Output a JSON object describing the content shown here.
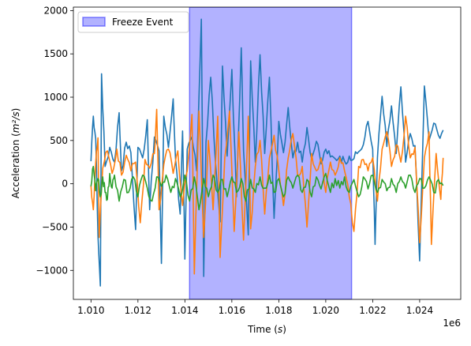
{
  "chart_data": {
    "type": "line",
    "title": "",
    "xlabel": "Time (s)",
    "ylabel": "Acceleration (m²/s)",
    "x_range": [
      1010000,
      1025000
    ],
    "xlim": [
      1009250,
      1025750
    ],
    "ylim": [
      -1335,
      2040
    ],
    "x_ticks": [
      1010000,
      1012000,
      1014000,
      1016000,
      1018000,
      1020000,
      1022000,
      1024000
    ],
    "x_tick_labels": [
      "1.010",
      "1.012",
      "1.014",
      "1.016",
      "1.018",
      "1.020",
      "1.022",
      "1.024"
    ],
    "x_offset_label": "1e6",
    "y_ticks": [
      -1000,
      -500,
      0,
      500,
      1000,
      1500,
      2000
    ],
    "y_tick_labels": [
      "−1000",
      "−500",
      "0",
      "500",
      "1000",
      "1500",
      "2000"
    ],
    "grid": false,
    "legend": {
      "position": "top-left",
      "entries": [
        {
          "label": "Freeze Event",
          "color": "#0000ff"
        }
      ]
    },
    "freeze_event": {
      "start": 1014200,
      "end": 1021100,
      "label": "Freeze Event",
      "color": "#0000ff",
      "alpha": 0.3
    },
    "series": [
      {
        "color": "#1f77b4",
        "points": [
          [
            1010000,
            260
          ],
          [
            1010100,
            780
          ],
          [
            1010200,
            520
          ],
          [
            1010300,
            -600
          ],
          [
            1010400,
            -1180
          ],
          [
            1010450,
            1270
          ],
          [
            1010600,
            200
          ],
          [
            1010800,
            420
          ],
          [
            1011000,
            250
          ],
          [
            1011200,
            820
          ],
          [
            1011300,
            150
          ],
          [
            1011500,
            480
          ],
          [
            1011700,
            360
          ],
          [
            1011900,
            -530
          ],
          [
            1012000,
            420
          ],
          [
            1012200,
            300
          ],
          [
            1012400,
            740
          ],
          [
            1012500,
            -300
          ],
          [
            1012700,
            540
          ],
          [
            1012900,
            380
          ],
          [
            1013000,
            -920
          ],
          [
            1013100,
            780
          ],
          [
            1013300,
            420
          ],
          [
            1013500,
            980
          ],
          [
            1013600,
            300
          ],
          [
            1013800,
            -350
          ],
          [
            1013900,
            610
          ],
          [
            1014000,
            -870
          ],
          [
            1014100,
            400
          ],
          [
            1014300,
            540
          ],
          [
            1014500,
            150
          ],
          [
            1014700,
            1900
          ],
          [
            1014800,
            -1070
          ],
          [
            1014900,
            480
          ],
          [
            1015100,
            1230
          ],
          [
            1015300,
            260
          ],
          [
            1015500,
            -440
          ],
          [
            1015600,
            1360
          ],
          [
            1015800,
            320
          ],
          [
            1016000,
            1320
          ],
          [
            1016200,
            -150
          ],
          [
            1016400,
            1570
          ],
          [
            1016500,
            380
          ],
          [
            1016700,
            -590
          ],
          [
            1016800,
            1420
          ],
          [
            1017000,
            250
          ],
          [
            1017200,
            1490
          ],
          [
            1017400,
            350
          ],
          [
            1017600,
            1230
          ],
          [
            1017800,
            -400
          ],
          [
            1018000,
            720
          ],
          [
            1018200,
            360
          ],
          [
            1018400,
            880
          ],
          [
            1018600,
            300
          ],
          [
            1018800,
            480
          ],
          [
            1019000,
            250
          ],
          [
            1019200,
            650
          ],
          [
            1019400,
            290
          ],
          [
            1019600,
            490
          ],
          [
            1019800,
            230
          ],
          [
            1020000,
            400
          ],
          [
            1020200,
            310
          ],
          [
            1020400,
            290
          ],
          [
            1020600,
            320
          ],
          [
            1020800,
            260
          ],
          [
            1021000,
            320
          ],
          [
            1021200,
            290
          ],
          [
            1021400,
            370
          ],
          [
            1021600,
            450
          ],
          [
            1021800,
            720
          ],
          [
            1022000,
            400
          ],
          [
            1022100,
            -700
          ],
          [
            1022200,
            300
          ],
          [
            1022400,
            1010
          ],
          [
            1022600,
            430
          ],
          [
            1022800,
            900
          ],
          [
            1023000,
            350
          ],
          [
            1023200,
            1120
          ],
          [
            1023400,
            250
          ],
          [
            1023600,
            580
          ],
          [
            1023800,
            440
          ],
          [
            1024000,
            -890
          ],
          [
            1024200,
            1130
          ],
          [
            1024400,
            500
          ],
          [
            1024600,
            700
          ],
          [
            1024800,
            560
          ],
          [
            1025000,
            620
          ]
        ]
      },
      {
        "color": "#ff7f0e",
        "points": [
          [
            1010000,
            -20
          ],
          [
            1010100,
            -300
          ],
          [
            1010200,
            240
          ],
          [
            1010300,
            530
          ],
          [
            1010350,
            -620
          ],
          [
            1010500,
            180
          ],
          [
            1010700,
            380
          ],
          [
            1010900,
            120
          ],
          [
            1011100,
            400
          ],
          [
            1011300,
            100
          ],
          [
            1011500,
            330
          ],
          [
            1011700,
            150
          ],
          [
            1011900,
            250
          ],
          [
            1012100,
            -450
          ],
          [
            1012300,
            280
          ],
          [
            1012500,
            180
          ],
          [
            1012700,
            350
          ],
          [
            1012800,
            860
          ],
          [
            1012900,
            -300
          ],
          [
            1013100,
            220
          ],
          [
            1013300,
            400
          ],
          [
            1013500,
            120
          ],
          [
            1013700,
            380
          ],
          [
            1013900,
            -250
          ],
          [
            1014100,
            150
          ],
          [
            1014300,
            800
          ],
          [
            1014400,
            -1040
          ],
          [
            1014600,
            840
          ],
          [
            1014800,
            -620
          ],
          [
            1015000,
            500
          ],
          [
            1015200,
            -300
          ],
          [
            1015400,
            780
          ],
          [
            1015500,
            -850
          ],
          [
            1015700,
            300
          ],
          [
            1015900,
            840
          ],
          [
            1016100,
            -550
          ],
          [
            1016300,
            600
          ],
          [
            1016500,
            -650
          ],
          [
            1016700,
            780
          ],
          [
            1016800,
            -520
          ],
          [
            1017000,
            200
          ],
          [
            1017200,
            500
          ],
          [
            1017400,
            -350
          ],
          [
            1017600,
            300
          ],
          [
            1017800,
            560
          ],
          [
            1018000,
            150
          ],
          [
            1018200,
            -250
          ],
          [
            1018400,
            300
          ],
          [
            1018600,
            580
          ],
          [
            1018800,
            100
          ],
          [
            1019000,
            200
          ],
          [
            1019200,
            -500
          ],
          [
            1019400,
            350
          ],
          [
            1019600,
            150
          ],
          [
            1019800,
            300
          ],
          [
            1020000,
            -100
          ],
          [
            1020200,
            250
          ],
          [
            1020400,
            100
          ],
          [
            1020600,
            300
          ],
          [
            1020800,
            150
          ],
          [
            1021000,
            -150
          ],
          [
            1021200,
            -550
          ],
          [
            1021400,
            200
          ],
          [
            1021600,
            280
          ],
          [
            1021800,
            150
          ],
          [
            1022000,
            300
          ],
          [
            1022200,
            -200
          ],
          [
            1022400,
            400
          ],
          [
            1022600,
            600
          ],
          [
            1022800,
            200
          ],
          [
            1023000,
            450
          ],
          [
            1023200,
            250
          ],
          [
            1023400,
            780
          ],
          [
            1023600,
            300
          ],
          [
            1023800,
            420
          ],
          [
            1024000,
            -680
          ],
          [
            1024200,
            300
          ],
          [
            1024400,
            600
          ],
          [
            1024500,
            -700
          ],
          [
            1024700,
            350
          ],
          [
            1024900,
            -180
          ],
          [
            1025000,
            300
          ]
        ]
      },
      {
        "color": "#2ca02c",
        "points": [
          [
            1010000,
            -30
          ],
          [
            1010100,
            200
          ],
          [
            1010200,
            -80
          ],
          [
            1010300,
            60
          ],
          [
            1010400,
            -150
          ],
          [
            1010500,
            80
          ],
          [
            1010600,
            -100
          ],
          [
            1010700,
            -180
          ],
          [
            1010800,
            120
          ],
          [
            1010900,
            -50
          ],
          [
            1011000,
            100
          ],
          [
            1011200,
            -200
          ],
          [
            1011400,
            50
          ],
          [
            1011600,
            -100
          ],
          [
            1011800,
            80
          ],
          [
            1012000,
            -150
          ],
          [
            1012200,
            100
          ],
          [
            1012400,
            -50
          ],
          [
            1012600,
            -200
          ],
          [
            1012800,
            80
          ],
          [
            1013000,
            -30
          ],
          [
            1013200,
            100
          ],
          [
            1013400,
            -100
          ],
          [
            1013600,
            60
          ],
          [
            1013800,
            -150
          ],
          [
            1014000,
            100
          ],
          [
            1014200,
            -200
          ],
          [
            1014400,
            80
          ],
          [
            1014600,
            -300
          ],
          [
            1014800,
            60
          ],
          [
            1015000,
            -150
          ],
          [
            1015200,
            100
          ],
          [
            1015400,
            -100
          ],
          [
            1015600,
            50
          ],
          [
            1015800,
            -150
          ],
          [
            1016000,
            80
          ],
          [
            1016200,
            -100
          ],
          [
            1016400,
            60
          ],
          [
            1016600,
            -200
          ],
          [
            1016800,
            50
          ],
          [
            1017000,
            -100
          ],
          [
            1017200,
            80
          ],
          [
            1017400,
            -50
          ],
          [
            1017600,
            100
          ],
          [
            1017800,
            -100
          ],
          [
            1018000,
            60
          ],
          [
            1018200,
            -150
          ],
          [
            1018400,
            80
          ],
          [
            1018600,
            -50
          ],
          [
            1018800,
            100
          ],
          [
            1019000,
            -100
          ],
          [
            1019200,
            50
          ],
          [
            1019400,
            -150
          ],
          [
            1019600,
            80
          ],
          [
            1019800,
            -60
          ],
          [
            1020000,
            120
          ],
          [
            1020200,
            -100
          ],
          [
            1020400,
            60
          ],
          [
            1020600,
            -50
          ],
          [
            1020800,
            80
          ],
          [
            1021000,
            -100
          ],
          [
            1021200,
            50
          ],
          [
            1021400,
            -150
          ],
          [
            1021600,
            80
          ],
          [
            1021800,
            -60
          ],
          [
            1022000,
            100
          ],
          [
            1022200,
            -100
          ],
          [
            1022400,
            50
          ],
          [
            1022600,
            -80
          ],
          [
            1022800,
            60
          ],
          [
            1023000,
            -100
          ],
          [
            1023200,
            80
          ],
          [
            1023400,
            -50
          ],
          [
            1023600,
            100
          ],
          [
            1023800,
            -100
          ],
          [
            1024000,
            60
          ],
          [
            1024200,
            -50
          ],
          [
            1024400,
            80
          ],
          [
            1024600,
            -100
          ],
          [
            1024800,
            50
          ],
          [
            1025000,
            -20
          ]
        ]
      }
    ]
  }
}
